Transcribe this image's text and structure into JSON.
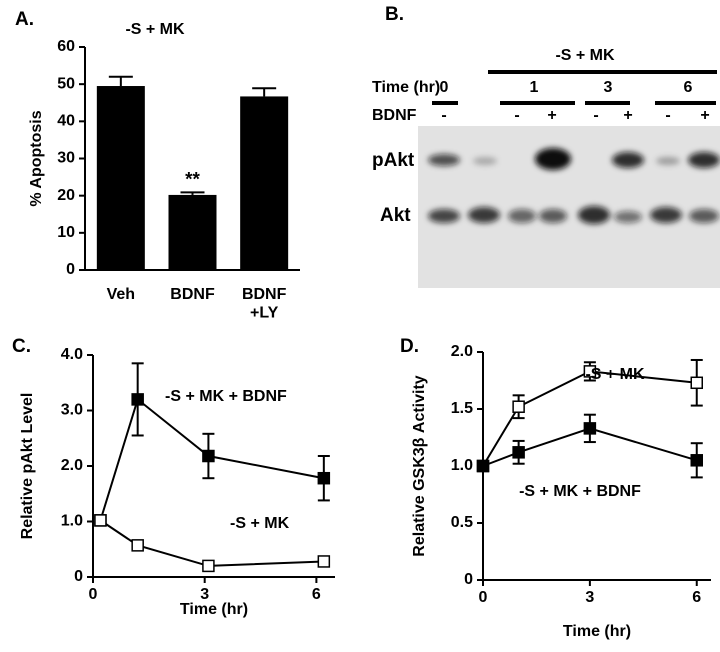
{
  "chart_data": [
    {
      "type": "bar",
      "panel_label": "A.",
      "title": "-S + MK",
      "ylabel": "% Apoptosis",
      "categories": [
        "Veh",
        "BDNF",
        "BDNF\n+LY"
      ],
      "values": [
        49.5,
        20.2,
        46.7
      ],
      "errors": [
        2.5,
        0.7,
        2.2
      ],
      "annotation": "**",
      "color": "#000000",
      "ylim": [
        0,
        60
      ],
      "yticks": [
        0,
        10,
        20,
        30,
        40,
        50,
        60
      ]
    },
    {
      "type": "line",
      "panel_label": "C.",
      "xlabel": "Time (hr)",
      "ylabel": "Relative pAkt Level",
      "xlim": [
        0,
        6.5
      ],
      "xticks": [
        0,
        3,
        6
      ],
      "ylim": [
        0,
        4.0
      ],
      "yticks": [
        0,
        {
          "value": 1.0,
          "label": "1.0"
        },
        {
          "value": 2.0,
          "label": "2.0"
        },
        {
          "value": 3.0,
          "label": "3.0"
        },
        {
          "value": 4.0,
          "label": "4.0"
        }
      ],
      "series": [
        {
          "name": "-S + MK + BDNF",
          "color": "#000000",
          "marker": "filled",
          "x": [
            0.2,
            1.2,
            3.1,
            6.2
          ],
          "values": [
            1.02,
            3.2,
            2.18,
            1.78
          ],
          "errors": [
            0.05,
            0.65,
            0.4,
            0.4
          ]
        },
        {
          "name": "-S + MK",
          "color": "#000000",
          "marker": "open",
          "x": [
            0.2,
            1.2,
            3.1,
            6.2
          ],
          "values": [
            1.02,
            0.57,
            0.2,
            0.28
          ],
          "errors": [
            0.03,
            0.03,
            0.03,
            0.03
          ]
        }
      ]
    },
    {
      "type": "line",
      "panel_label": "D.",
      "xlabel": "Time (hr)",
      "ylabel": "Relative GSK3β Activity",
      "xlim": [
        0,
        6.4
      ],
      "xticks": [
        0,
        3,
        6
      ],
      "ylim": [
        0,
        2.0
      ],
      "yticks": [
        0,
        {
          "value": 0.5,
          "label": "0.5"
        },
        {
          "value": 1.0,
          "label": "1.0"
        },
        {
          "value": 1.5,
          "label": "1.5"
        },
        {
          "value": 2.0,
          "label": "2.0"
        }
      ],
      "series": [
        {
          "name": "-S + MK",
          "color": "#000000",
          "marker": "open",
          "x": [
            0,
            1,
            3,
            6
          ],
          "values": [
            1.0,
            1.52,
            1.83,
            1.73
          ],
          "errors": [
            0.02,
            0.1,
            0.08,
            0.2
          ]
        },
        {
          "name": "-S + MK + BDNF",
          "color": "#000000",
          "marker": "filled",
          "x": [
            0,
            1,
            3,
            6
          ],
          "values": [
            1.0,
            1.12,
            1.33,
            1.05
          ],
          "errors": [
            0.02,
            0.1,
            0.12,
            0.15
          ]
        }
      ]
    }
  ],
  "blot": {
    "panel_label": "B.",
    "condition": "-S + MK",
    "time_label": "Time (hr)",
    "times": [
      "0",
      "1",
      "3",
      "6"
    ],
    "treatment_label": "BDNF",
    "lanes": [
      "-",
      "-",
      "+",
      "-",
      "+",
      "-",
      "+"
    ],
    "rows": [
      "pAkt",
      "Akt"
    ]
  }
}
